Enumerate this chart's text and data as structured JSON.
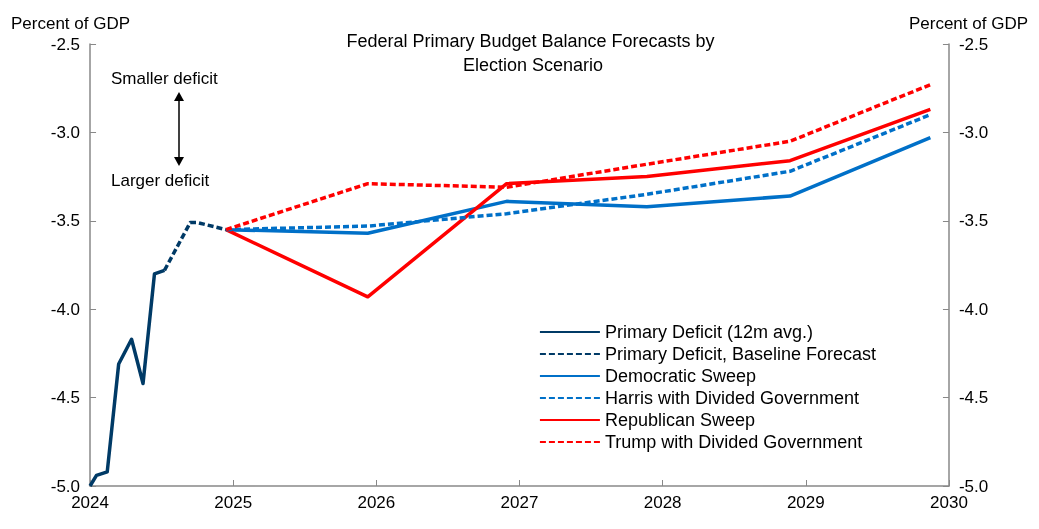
{
  "chart_data": {
    "type": "line",
    "title": "Federal Primary Budget Balance Forecasts by Election Scenario",
    "ylabel": "Percent of GDP",
    "y2label": "Percent of GDP",
    "xlim": [
      2024,
      2030
    ],
    "xticks": [
      2024,
      2025,
      2026,
      2027,
      2028,
      2029,
      2030
    ],
    "ylim": [
      -5.0,
      -2.5
    ],
    "yticks": [
      {
        "value": -5.0,
        "label": "-5.0"
      },
      {
        "value": -4.5,
        "label": "-4.5"
      },
      {
        "value": -4.0,
        "label": "-4.0"
      },
      {
        "value": -3.5,
        "label": "-3.5"
      },
      {
        "value": -3.0,
        "label": "-3.0"
      },
      {
        "value": -2.5,
        "label": "-2.5"
      }
    ],
    "y2lim": [
      -5.0,
      -2.5
    ],
    "y2ticks": [
      {
        "value": -5.0,
        "label": "-5.0"
      },
      {
        "value": -4.5,
        "label": "-4.5"
      },
      {
        "value": -4.0,
        "label": "-4.0"
      },
      {
        "value": -3.5,
        "label": "-3.5"
      },
      {
        "value": -3.0,
        "label": "-3.0"
      },
      {
        "value": -2.5,
        "label": "-2.5"
      }
    ],
    "grid": false,
    "marker": "none",
    "legend": "bottom right",
    "annotations": [
      "Smaller deficit",
      "Larger deficit"
    ],
    "series": [
      {
        "name": "Primary Deficit (12m avg.)",
        "color": "#003a66",
        "line_style": "solid",
        "x": [
          2024.0,
          2024.045,
          2024.12,
          2024.2,
          2024.29,
          2024.37,
          2024.45,
          2024.52
        ],
        "values": [
          -5.0,
          -4.94,
          -4.92,
          -4.31,
          -4.17,
          -4.42,
          -3.8,
          -3.78
        ]
      },
      {
        "name": "Primary Deficit, Baseline Forecast",
        "color": "#003a66",
        "line_style": "dashed",
        "x": [
          2024.52,
          2024.7,
          2024.75,
          2024.95
        ],
        "values": [
          -3.78,
          -3.51,
          -3.51,
          -3.55
        ]
      },
      {
        "name": "Democratic Sweep",
        "color": "#0070c8",
        "line_style": "solid",
        "x": [
          2024.95,
          2025.94,
          2026.91,
          2027.89,
          2028.89,
          2029.87
        ],
        "values": [
          -3.55,
          -3.57,
          -3.39,
          -3.42,
          -3.36,
          -3.03
        ]
      },
      {
        "name": "Harris with Divided Government",
        "color": "#0070c8",
        "line_style": "dashed",
        "x": [
          2024.95,
          2025.94,
          2026.91,
          2027.89,
          2028.89,
          2029.87
        ],
        "values": [
          -3.55,
          -3.53,
          -3.46,
          -3.35,
          -3.22,
          -2.9
        ]
      },
      {
        "name": "Republican Sweep",
        "color": "#ff0000",
        "line_style": "solid",
        "x": [
          2024.95,
          2025.94,
          2026.91,
          2027.89,
          2028.89,
          2029.87
        ],
        "values": [
          -3.55,
          -3.93,
          -3.29,
          -3.25,
          -3.16,
          -2.87
        ]
      },
      {
        "name": "Trump with Divided Government",
        "color": "#ff0000",
        "line_style": "dashed",
        "x": [
          2024.95,
          2025.94,
          2026.91,
          2027.89,
          2028.89,
          2029.87
        ],
        "values": [
          -3.55,
          -3.29,
          -3.31,
          -3.18,
          -3.05,
          -2.73
        ]
      }
    ]
  }
}
